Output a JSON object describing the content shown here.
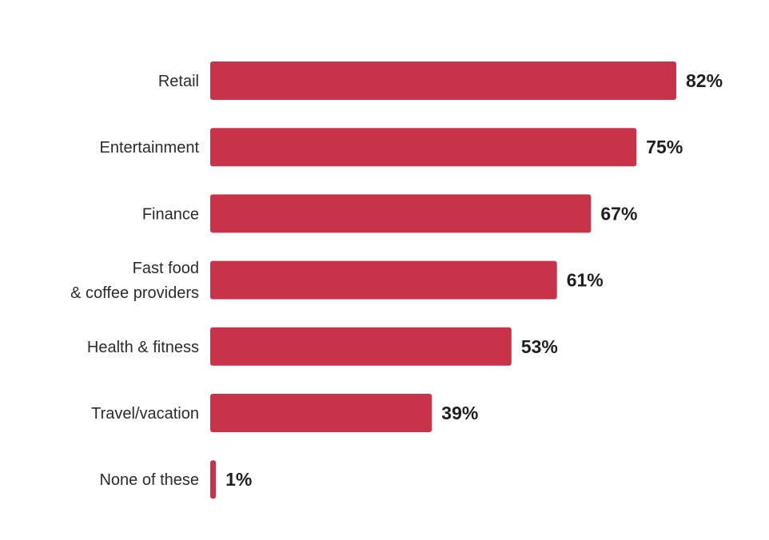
{
  "chart_data": {
    "type": "bar",
    "orientation": "horizontal",
    "categories": [
      "Retail",
      "Entertainment",
      "Finance",
      "Fast food\n& coffee providers",
      "Health & fitness",
      "Travel/vacation",
      "None of these"
    ],
    "values": [
      82,
      75,
      67,
      61,
      53,
      39,
      1
    ],
    "value_labels": [
      "82%",
      "75%",
      "67%",
      "61%",
      "53%",
      "39%",
      "1%"
    ],
    "unit": "%",
    "xlim": [
      0,
      100
    ],
    "grid": false,
    "legend": "none",
    "bar_color": "#c8334a",
    "title": "",
    "xlabel": "",
    "ylabel": ""
  }
}
